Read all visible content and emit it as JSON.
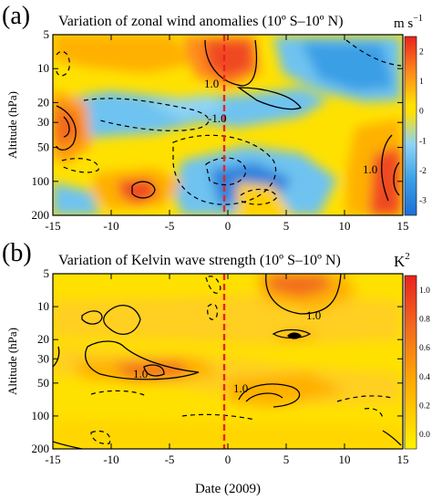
{
  "chart_data": [
    {
      "type": "heatmap",
      "panel_label": "(a)",
      "title": "Variation of zonal wind anomalies (10º S–10º N)",
      "unit_label": "m s",
      "unit_superscript": "−1",
      "ylabel": "Altitude (hPa)",
      "xlabel": "",
      "x_ticks": [
        "-15",
        "-10",
        "-5",
        "0",
        "5",
        "10",
        "15"
      ],
      "x_range": [
        -15,
        15
      ],
      "y_ticks": [
        "5",
        "10",
        "20",
        "30",
        "50",
        "100",
        "200"
      ],
      "y_range_hpa": [
        5,
        200
      ],
      "y_scale": "log",
      "colorbar_ticks": [
        "2",
        "1",
        "0",
        "-1",
        "-2",
        "-3"
      ],
      "colorbar_range": [
        -3,
        2
      ],
      "contour_labels": [
        "1.0",
        "-1.0",
        "1.0"
      ],
      "reference_line_x": 0,
      "colors": {
        "negative": "#2f8fdc",
        "zero": "#fff200",
        "positive": "#f04a24",
        "reference_line": "#e8231e"
      }
    },
    {
      "type": "heatmap",
      "panel_label": "(b)",
      "title": "Variation of Kelvin wave strength (10º S–10º N)",
      "unit_label": "K",
      "unit_superscript": "2",
      "ylabel": "Altitude (hPa)",
      "xlabel": "Date (2009)",
      "x_ticks": [
        "-15",
        "-10",
        "-5",
        "0",
        "5",
        "10",
        "15"
      ],
      "x_range": [
        -15,
        15
      ],
      "y_ticks": [
        "5",
        "10",
        "20",
        "30",
        "50",
        "100",
        "200"
      ],
      "y_range_hpa": [
        5,
        200
      ],
      "y_scale": "log",
      "colorbar_ticks": [
        "1.0",
        "0.8",
        "0.6",
        "0.4",
        "0.2",
        "0.0"
      ],
      "colorbar_range": [
        0,
        1
      ],
      "contour_labels": [
        "1.0",
        "1.0",
        "1.0"
      ],
      "reference_line_x": 0,
      "colors": {
        "low": "#fff200",
        "high": "#e8231e",
        "reference_line": "#e8231e"
      }
    }
  ]
}
